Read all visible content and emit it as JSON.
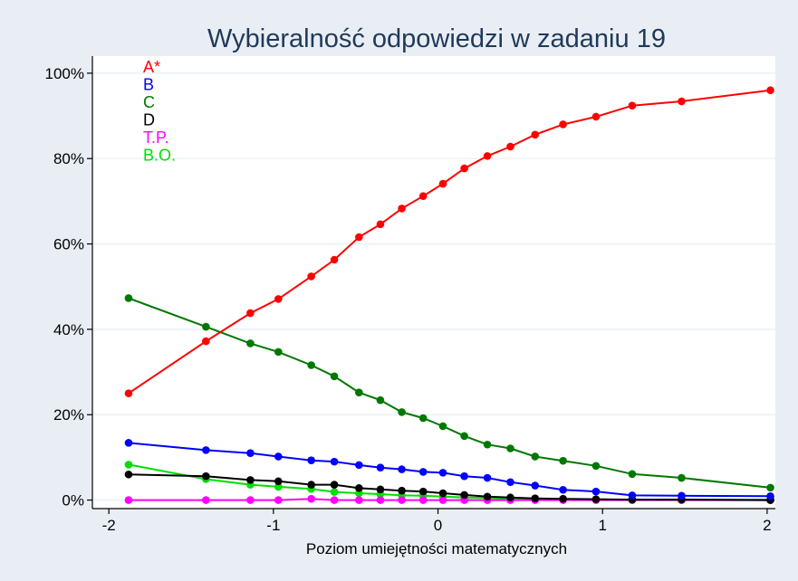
{
  "chart_data": {
    "type": "line",
    "title": "Wybieralność odpowiedzi w zadaniu 19",
    "xlabel": "Poziom umiejętności matematycznych",
    "ylabel": "",
    "xlim": [
      -2.1,
      2.05
    ],
    "ylim": [
      -0.02,
      1.04
    ],
    "x_ticks": [
      -2,
      -1,
      0,
      1,
      2
    ],
    "x_tick_labels": [
      "-2",
      "-1",
      "0",
      "1",
      "2"
    ],
    "y_ticks": [
      0,
      0.2,
      0.4,
      0.6,
      0.8,
      1.0
    ],
    "y_tick_labels": [
      "0%",
      "20%",
      "40%",
      "60%",
      "80%",
      "100%"
    ],
    "grid": true,
    "legend_placement": "top-left",
    "x": [
      -1.88,
      -1.41,
      -1.14,
      -0.97,
      -0.77,
      -0.63,
      -0.48,
      -0.35,
      -0.22,
      -0.09,
      0.03,
      0.16,
      0.3,
      0.44,
      0.59,
      0.76,
      0.96,
      1.18,
      1.48,
      2.02
    ],
    "series": [
      {
        "name": "A*",
        "color": "#ff0000",
        "values": [
          0.25,
          0.372,
          0.438,
          0.471,
          0.524,
          0.563,
          0.616,
          0.646,
          0.683,
          0.712,
          0.741,
          0.777,
          0.806,
          0.828,
          0.856,
          0.88,
          0.898,
          0.924,
          0.934,
          0.96
        ]
      },
      {
        "name": "B",
        "color": "#0000ff",
        "values": [
          0.134,
          0.117,
          0.11,
          0.102,
          0.093,
          0.09,
          0.082,
          0.076,
          0.072,
          0.066,
          0.064,
          0.056,
          0.052,
          0.042,
          0.034,
          0.024,
          0.02,
          0.011,
          0.01,
          0.009
        ]
      },
      {
        "name": "C",
        "color": "#007800",
        "values": [
          0.473,
          0.406,
          0.367,
          0.347,
          0.316,
          0.29,
          0.252,
          0.234,
          0.206,
          0.192,
          0.173,
          0.15,
          0.13,
          0.121,
          0.102,
          0.092,
          0.08,
          0.061,
          0.052,
          0.029
        ]
      },
      {
        "name": "D",
        "color": "#000000",
        "values": [
          0.06,
          0.056,
          0.047,
          0.044,
          0.036,
          0.036,
          0.028,
          0.025,
          0.022,
          0.02,
          0.016,
          0.012,
          0.008,
          0.006,
          0.004,
          0.003,
          0.002,
          0.001,
          0.001,
          0.0
        ]
      },
      {
        "name": "T.P.",
        "color": "#ff00ff",
        "values": [
          0.0,
          0.0,
          0.0,
          0.0,
          0.003,
          0.0,
          0.0,
          0.0,
          0.0,
          0.0,
          0.0,
          0.0,
          0.0,
          0.0,
          0.0,
          0.0,
          0.0,
          0.0,
          0.0,
          0.0
        ]
      },
      {
        "name": "B.O.",
        "color": "#00e000",
        "values": [
          0.083,
          0.049,
          0.036,
          0.031,
          0.026,
          0.019,
          0.016,
          0.014,
          0.011,
          0.01,
          0.008,
          0.006,
          0.005,
          0.003,
          0.002,
          0.001,
          0.001,
          0.001,
          0.001,
          0.001
        ]
      }
    ]
  },
  "colors": {
    "background": "#e9eef5",
    "plot_background": "#ffffff",
    "grid": "#e6edf4",
    "title": "#1f3a5a"
  }
}
